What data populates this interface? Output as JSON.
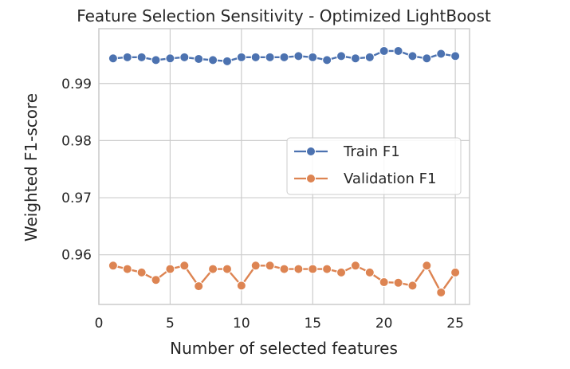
{
  "chart_data": {
    "type": "line",
    "title": "Feature Selection Sensitivity - Optimized LightBoost",
    "xlabel": "Number of selected features",
    "ylabel": "Weighted F1-score",
    "xlim": [
      0,
      26
    ],
    "ylim": [
      0.9513,
      0.9996
    ],
    "xticks": [
      0,
      5,
      10,
      15,
      20,
      25
    ],
    "xtick_labels": [
      "0",
      "5",
      "10",
      "15",
      "20",
      "25"
    ],
    "yticks": [
      0.96,
      0.97,
      0.98,
      0.99
    ],
    "ytick_labels": [
      "0.96",
      "0.97",
      "0.98",
      "0.99"
    ],
    "grid": true,
    "legend_position": "center-right",
    "x": [
      1,
      2,
      3,
      4,
      5,
      6,
      7,
      8,
      9,
      10,
      11,
      12,
      13,
      14,
      15,
      16,
      17,
      18,
      19,
      20,
      21,
      22,
      23,
      24,
      25
    ],
    "series": [
      {
        "name": "Train F1",
        "color": "#4c72b0",
        "values": [
          0.9944,
          0.9946,
          0.9946,
          0.9941,
          0.9944,
          0.9946,
          0.9943,
          0.9941,
          0.9939,
          0.9946,
          0.9946,
          0.9946,
          0.9946,
          0.9948,
          0.9946,
          0.9941,
          0.9948,
          0.9944,
          0.9946,
          0.9957,
          0.9957,
          0.9948,
          0.9944,
          0.9952,
          0.9948
        ]
      },
      {
        "name": "Validation F1",
        "color": "#dd8452",
        "values": [
          0.9581,
          0.9575,
          0.9569,
          0.9556,
          0.9575,
          0.9581,
          0.9545,
          0.9575,
          0.9575,
          0.9546,
          0.9581,
          0.9581,
          0.9575,
          0.9575,
          0.9575,
          0.9575,
          0.9569,
          0.9581,
          0.9569,
          0.9552,
          0.9551,
          0.9546,
          0.9581,
          0.9534,
          0.9569
        ]
      }
    ]
  }
}
